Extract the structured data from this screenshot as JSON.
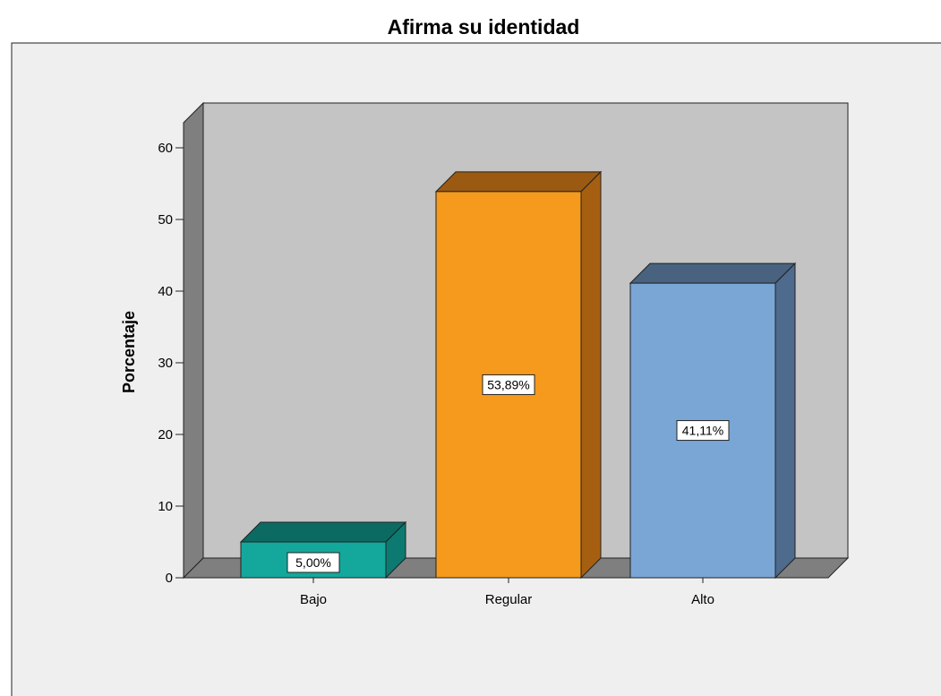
{
  "chart_data": {
    "type": "bar",
    "title": "Afirma su identidad",
    "xlabel": "",
    "ylabel": "Porcentaje",
    "categories": [
      "Bajo",
      "Regular",
      "Alto"
    ],
    "values": [
      5.0,
      53.89,
      41.11
    ],
    "data_labels": [
      "5,00%",
      "53,89%",
      "41,11%"
    ],
    "ylim": [
      0,
      60
    ],
    "yticks": [
      "0",
      "10",
      "20",
      "30",
      "40",
      "50",
      "60"
    ],
    "grid": false,
    "legend": "none",
    "style": "3d",
    "colors": {
      "Bajo": {
        "front": "#13a89b",
        "top": "#0b6b63",
        "side": "#0d7a71"
      },
      "Regular": {
        "front": "#f59a1c",
        "top": "#9b5a12",
        "side": "#a65f10"
      },
      "Alto": {
        "front": "#7aa6d6",
        "top": "#48627f",
        "side": "#4e6a8c"
      }
    },
    "panel_colors": {
      "outer_background": "#efefef",
      "back_wall": "#c4c4c4",
      "side_wall": "#7f7f7f",
      "floor": "#7f7f7f"
    }
  }
}
